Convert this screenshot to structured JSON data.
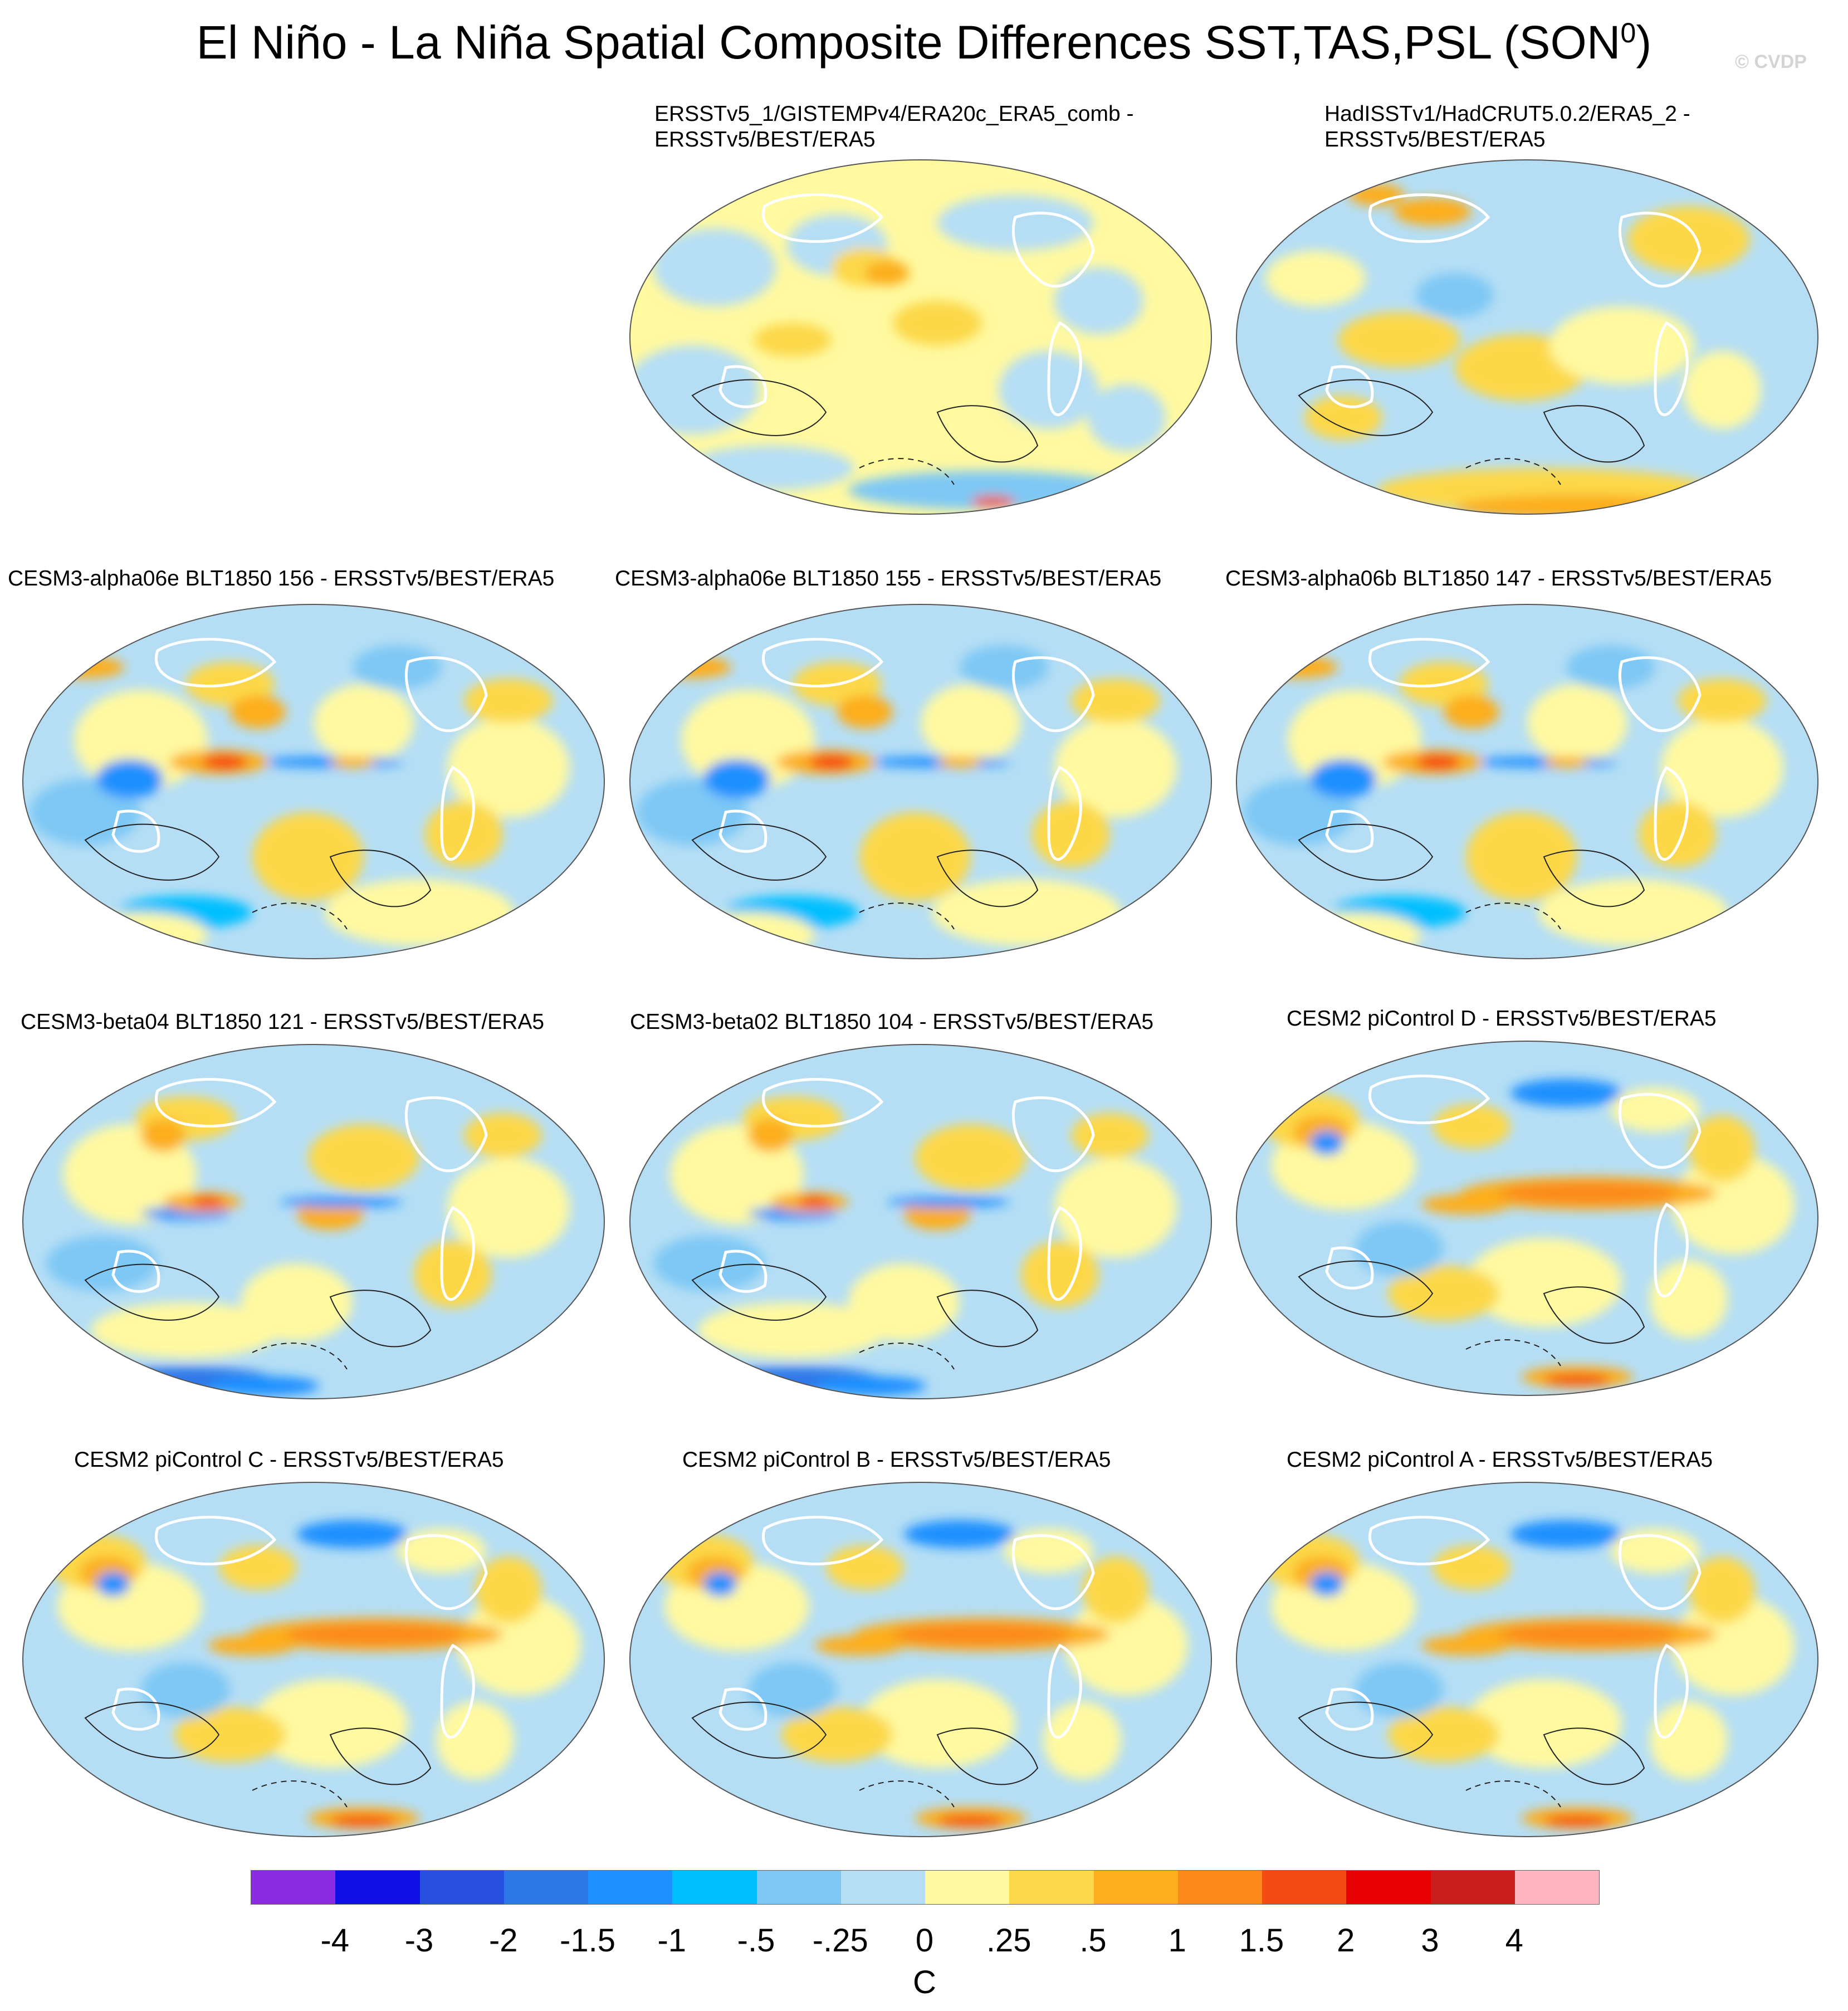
{
  "title_main": "El Niño - La Niña Spatial Composite Differences SST,TAS,PSL (SON",
  "title_sup": "0",
  "title_end": ")",
  "watermark": "© CVDP",
  "panels": [
    {
      "title_lines": [
        "ERSSTv5_1/GISTEMPv4/ERA20c_ERA5_comb -",
        "ERSSTv5/BEST/ERA5"
      ],
      "pattern": "obs1"
    },
    {
      "title_lines": [
        "HadISSTv1/HadCRUT5.0.2/ERA5_2 -",
        "ERSSTv5/BEST/ERA5"
      ],
      "pattern": "obs2"
    },
    {
      "title_lines": [
        "CESM3-alpha06e BLT1850 156 - ERSSTv5/BEST/ERA5"
      ],
      "pattern": "cold"
    },
    {
      "title_lines": [
        "CESM3-alpha06e BLT1850 155 - ERSSTv5/BEST/ERA5"
      ],
      "pattern": "cold"
    },
    {
      "title_lines": [
        "CESM3-alpha06b BLT1850 147 - ERSSTv5/BEST/ERA5"
      ],
      "pattern": "cold"
    },
    {
      "title_lines": [
        "CESM3-beta04 BLT1850 121 - ERSSTv5/BEST/ERA5"
      ],
      "pattern": "cold2"
    },
    {
      "title_lines": [
        "CESM3-beta02 BLT1850 104 - ERSSTv5/BEST/ERA5"
      ],
      "pattern": "cold2"
    },
    {
      "title_lines": [
        "CESM2 piControl D - ERSSTv5/BEST/ERA5"
      ],
      "pattern": "warm"
    },
    {
      "title_lines": [
        "CESM2 piControl C - ERSSTv5/BEST/ERA5"
      ],
      "pattern": "warm"
    },
    {
      "title_lines": [
        "CESM2 piControl B - ERSSTv5/BEST/ERA5"
      ],
      "pattern": "warm"
    },
    {
      "title_lines": [
        "CESM2 piControl A - ERSSTv5/BEST/ERA5"
      ],
      "pattern": "warm"
    }
  ],
  "colorbar": {
    "colors": [
      "#8a2be2",
      "#1010e6",
      "#2850e0",
      "#2d78e8",
      "#1e90ff",
      "#00bfff",
      "#7ec8f5",
      "#b5def5",
      "#fff9a0",
      "#fcd84a",
      "#fcae1e",
      "#fb8a1a",
      "#f44a14",
      "#e60000",
      "#c81e1e",
      "#ffb6c1"
    ],
    "labels": [
      "-4",
      "-3",
      "-2",
      "-1.5",
      "-1",
      "-.5",
      "-.25",
      "0",
      ".25",
      ".5",
      "1",
      "1.5",
      "2",
      "3",
      "4"
    ],
    "units": "C"
  }
}
